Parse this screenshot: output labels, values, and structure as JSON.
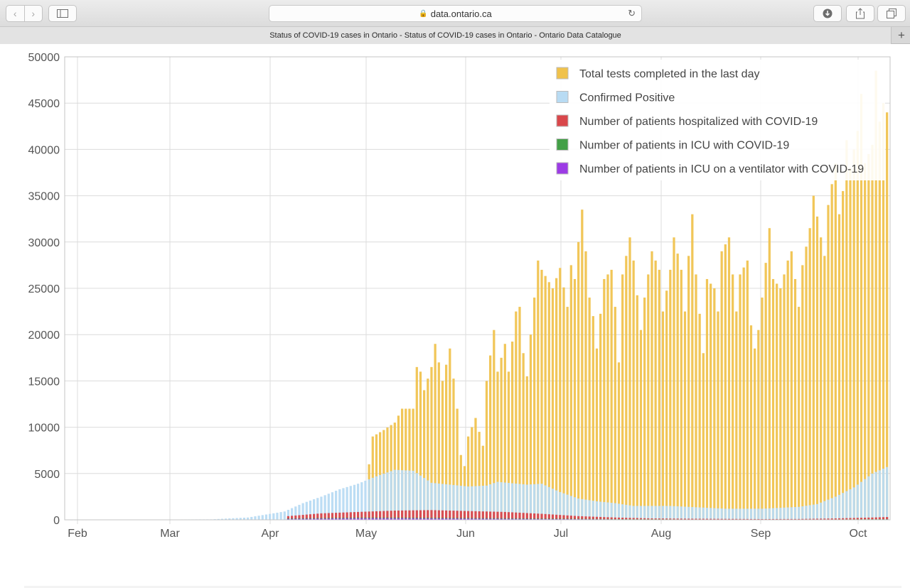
{
  "browser": {
    "url": "data.ontario.ca",
    "tab_title": "Status of COVID-19 cases in Ontario - Status of COVID-19 cases in Ontario - Ontario Data Catalogue",
    "new_tab": "+"
  },
  "chart_data": {
    "type": "bar",
    "stacked": "overlapping",
    "title": "",
    "xlabel": "",
    "ylabel": "",
    "ylim": [
      0,
      50000
    ],
    "yticks": [
      0,
      5000,
      10000,
      15000,
      20000,
      25000,
      30000,
      35000,
      40000,
      45000,
      50000
    ],
    "xticks": [
      "Feb",
      "Mar",
      "Apr",
      "May",
      "Jun",
      "Jul",
      "Aug",
      "Sep",
      "Oct"
    ],
    "grid": true,
    "legend_position": "top-right",
    "series": [
      {
        "name": "Total tests completed in the last day",
        "color": "#f0c24b",
        "anchors": [
          [
            1,
            0
          ],
          [
            82,
            0
          ],
          [
            83,
            6000
          ],
          [
            84,
            9000
          ],
          [
            87,
            9700
          ],
          [
            90,
            10500
          ],
          [
            92,
            12000
          ],
          [
            95,
            12000
          ],
          [
            96,
            16500
          ],
          [
            97,
            16000
          ],
          [
            98,
            14000
          ],
          [
            100,
            16500
          ],
          [
            101,
            19000
          ],
          [
            103,
            15000
          ],
          [
            105,
            18500
          ],
          [
            107,
            12000
          ],
          [
            108,
            7000
          ],
          [
            109,
            5800
          ],
          [
            110,
            9000
          ],
          [
            112,
            11000
          ],
          [
            114,
            8000
          ],
          [
            115,
            15000
          ],
          [
            117,
            20500
          ],
          [
            118,
            16000
          ],
          [
            120,
            19000
          ],
          [
            121,
            16000
          ],
          [
            123,
            22500
          ],
          [
            124,
            23000
          ],
          [
            125,
            18000
          ],
          [
            126,
            15500
          ],
          [
            127,
            20000
          ],
          [
            128,
            24000
          ],
          [
            129,
            28000
          ],
          [
            130,
            27000
          ],
          [
            133,
            25000
          ],
          [
            135,
            27200
          ],
          [
            137,
            23000
          ],
          [
            138,
            27500
          ],
          [
            139,
            26000
          ],
          [
            140,
            30000
          ],
          [
            141,
            33500
          ],
          [
            142,
            29000
          ],
          [
            143,
            24000
          ],
          [
            144,
            22000
          ],
          [
            145,
            18500
          ],
          [
            147,
            26000
          ],
          [
            149,
            27000
          ],
          [
            150,
            23000
          ],
          [
            151,
            17000
          ],
          [
            152,
            26500
          ],
          [
            154,
            30500
          ],
          [
            155,
            28000
          ],
          [
            157,
            20500
          ],
          [
            158,
            24000
          ],
          [
            160,
            29000
          ],
          [
            162,
            27000
          ],
          [
            163,
            22500
          ],
          [
            165,
            27000
          ],
          [
            166,
            30500
          ],
          [
            168,
            27000
          ],
          [
            169,
            22500
          ],
          [
            170,
            28500
          ],
          [
            171,
            33000
          ],
          [
            172,
            26500
          ],
          [
            174,
            18000
          ],
          [
            175,
            26000
          ],
          [
            177,
            25000
          ],
          [
            178,
            22500
          ],
          [
            179,
            29000
          ],
          [
            181,
            30500
          ],
          [
            182,
            26500
          ],
          [
            183,
            22500
          ],
          [
            184,
            26500
          ],
          [
            186,
            28000
          ],
          [
            187,
            21000
          ],
          [
            188,
            18500
          ],
          [
            189,
            20500
          ],
          [
            190,
            24000
          ],
          [
            192,
            31500
          ],
          [
            193,
            26000
          ],
          [
            195,
            25000
          ],
          [
            197,
            28000
          ],
          [
            198,
            29000
          ],
          [
            200,
            23000
          ],
          [
            201,
            27500
          ],
          [
            203,
            31500
          ],
          [
            204,
            35000
          ],
          [
            206,
            30500
          ],
          [
            207,
            28500
          ],
          [
            208,
            34000
          ],
          [
            210,
            38500
          ],
          [
            211,
            33000
          ],
          [
            212,
            35500
          ],
          [
            213,
            41000
          ],
          [
            214,
            38000
          ],
          [
            216,
            42000
          ],
          [
            217,
            46000
          ],
          [
            218,
            38500
          ],
          [
            220,
            40500
          ],
          [
            221,
            48500
          ],
          [
            222,
            43000
          ],
          [
            223,
            45000
          ],
          [
            224,
            44000
          ]
        ]
      },
      {
        "name": "Confirmed Positive",
        "color": "#b8dbf3",
        "anchors": [
          [
            1,
            0
          ],
          [
            40,
            50
          ],
          [
            50,
            250
          ],
          [
            60,
            900
          ],
          [
            65,
            1800
          ],
          [
            70,
            2500
          ],
          [
            75,
            3300
          ],
          [
            80,
            3900
          ],
          [
            85,
            4700
          ],
          [
            90,
            5400
          ],
          [
            95,
            5300
          ],
          [
            100,
            4000
          ],
          [
            110,
            3600
          ],
          [
            115,
            3700
          ],
          [
            118,
            4100
          ],
          [
            126,
            3800
          ],
          [
            130,
            3900
          ],
          [
            135,
            3000
          ],
          [
            140,
            2300
          ],
          [
            145,
            2000
          ],
          [
            150,
            1800
          ],
          [
            155,
            1500
          ],
          [
            165,
            1500
          ],
          [
            170,
            1400
          ],
          [
            175,
            1300
          ],
          [
            180,
            1200
          ],
          [
            190,
            1200
          ],
          [
            200,
            1400
          ],
          [
            205,
            1700
          ],
          [
            210,
            2500
          ],
          [
            215,
            3500
          ],
          [
            220,
            5000
          ],
          [
            224,
            5700
          ]
        ]
      },
      {
        "name": "Number of patients hospitalized with COVID-19",
        "color": "#d9474b",
        "anchors": [
          [
            1,
            0
          ],
          [
            60,
            0
          ],
          [
            61,
            400
          ],
          [
            70,
            700
          ],
          [
            80,
            850
          ],
          [
            90,
            1000
          ],
          [
            100,
            1050
          ],
          [
            110,
            950
          ],
          [
            120,
            850
          ],
          [
            130,
            650
          ],
          [
            140,
            400
          ],
          [
            150,
            250
          ],
          [
            160,
            150
          ],
          [
            170,
            120
          ],
          [
            180,
            100
          ],
          [
            190,
            80
          ],
          [
            200,
            90
          ],
          [
            210,
            150
          ],
          [
            220,
            250
          ],
          [
            224,
            300
          ]
        ]
      },
      {
        "name": "Number of patients in ICU with COVID-19",
        "color": "#43a047",
        "anchors": [
          [
            1,
            0
          ],
          [
            60,
            0
          ],
          [
            61,
            150
          ],
          [
            80,
            250
          ],
          [
            90,
            250
          ],
          [
            110,
            200
          ],
          [
            130,
            140
          ],
          [
            150,
            80
          ],
          [
            170,
            40
          ],
          [
            190,
            25
          ],
          [
            210,
            40
          ],
          [
            224,
            80
          ]
        ]
      },
      {
        "name": "Number of patients in ICU on a ventilator with COVID-19",
        "color": "#9c3be5",
        "anchors": [
          [
            1,
            0
          ],
          [
            60,
            0
          ],
          [
            61,
            100
          ],
          [
            80,
            180
          ],
          [
            90,
            180
          ],
          [
            110,
            140
          ],
          [
            130,
            90
          ],
          [
            150,
            50
          ],
          [
            170,
            25
          ],
          [
            190,
            15
          ],
          [
            210,
            25
          ],
          [
            224,
            50
          ]
        ]
      }
    ]
  }
}
